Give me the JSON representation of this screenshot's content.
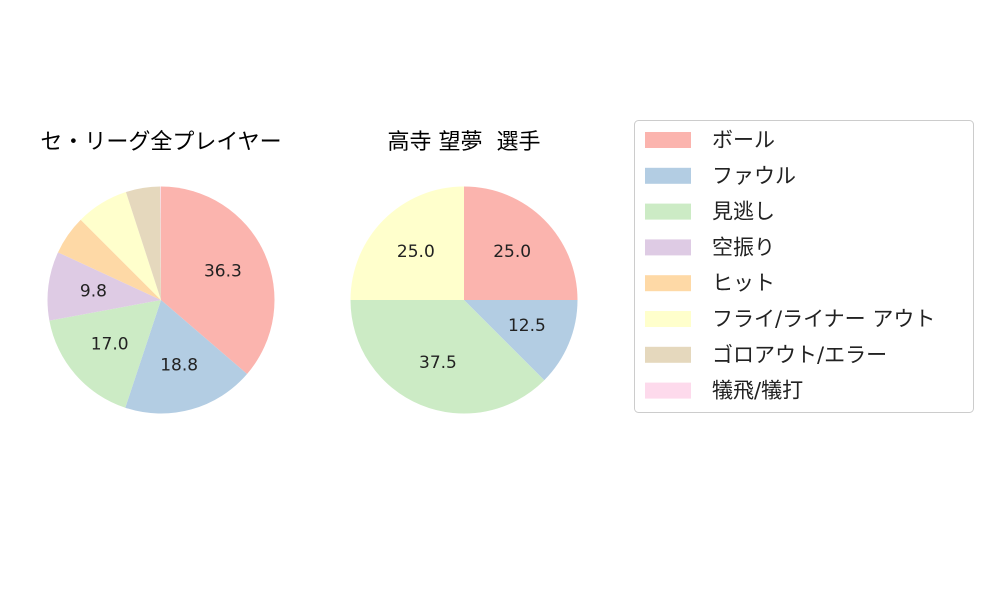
{
  "legend": {
    "items": [
      {
        "label": "ボール",
        "color": "#fbb4ae"
      },
      {
        "label": "ファウル",
        "color": "#b3cde3"
      },
      {
        "label": "見逃し",
        "color": "#ccebc5"
      },
      {
        "label": "空振り",
        "color": "#decbe4"
      },
      {
        "label": "ヒット",
        "color": "#fed9a6"
      },
      {
        "label": "フライ/ライナー アウト",
        "color": "#ffffcc"
      },
      {
        "label": "ゴロアウト/エラー",
        "color": "#e5d8bd"
      },
      {
        "label": "犠飛/犠打",
        "color": "#fddaec"
      }
    ]
  },
  "chart_data": [
    {
      "type": "pie",
      "title": "セ・リーグ全プレイヤー",
      "categories": [
        "ボール",
        "ファウル",
        "見逃し",
        "空振り",
        "ヒット",
        "フライ/ライナー アウト",
        "ゴロアウト/エラー",
        "犠飛/犠打"
      ],
      "values": [
        36.3,
        18.8,
        17.0,
        9.8,
        5.6,
        7.5,
        4.9,
        0.1
      ],
      "data_labels": [
        "36.3",
        "18.8",
        "17.0",
        "9.8",
        "",
        "",
        "",
        ""
      ],
      "colors": [
        "#fbb4ae",
        "#b3cde3",
        "#ccebc5",
        "#decbe4",
        "#fed9a6",
        "#ffffcc",
        "#e5d8bd",
        "#fddaec"
      ]
    },
    {
      "type": "pie",
      "title": "高寺 望夢  選手",
      "categories": [
        "ボール",
        "ファウル",
        "見逃し",
        "空振り",
        "ヒット",
        "フライ/ライナー アウト",
        "ゴロアウト/エラー",
        "犠飛/犠打"
      ],
      "values": [
        25.0,
        12.5,
        37.5,
        0,
        0,
        25.0,
        0,
        0
      ],
      "data_labels": [
        "25.0",
        "12.5",
        "37.5",
        "",
        "",
        "25.0",
        "",
        ""
      ],
      "colors": [
        "#fbb4ae",
        "#b3cde3",
        "#ccebc5",
        "#decbe4",
        "#fed9a6",
        "#ffffcc",
        "#e5d8bd",
        "#fddaec"
      ]
    }
  ]
}
